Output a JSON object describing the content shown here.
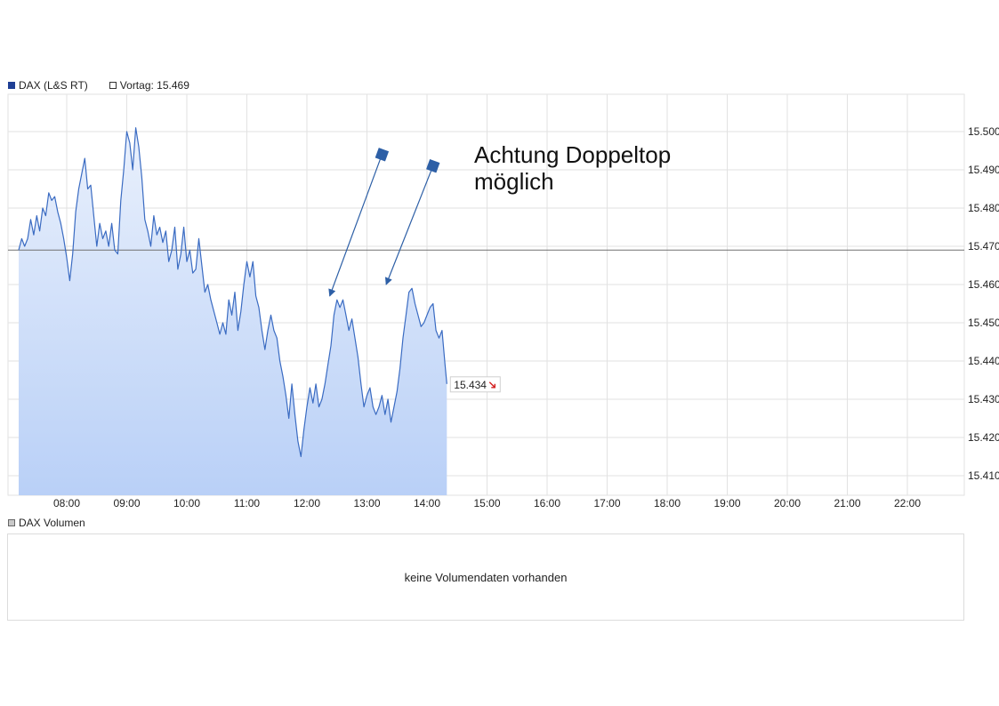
{
  "legend": {
    "series_label": "DAX (L&S RT)",
    "vortag_label": "Vortag: 15.469",
    "volume_label": "DAX Volumen"
  },
  "volume": {
    "message": "keine Volumendaten vorhanden"
  },
  "annotation": {
    "line1": "Achtung Doppeltop",
    "line2": "möglich"
  },
  "colors": {
    "line": "#3a6bc2",
    "fill_top": "#e9f0fc",
    "fill_bottom": "#b9d0f7",
    "grid": "#e2e2e2",
    "reference": "#707070",
    "arrow": "#2d5fa6",
    "last_down_arrow": "#d42020"
  },
  "chart_data": {
    "type": "area",
    "title": "",
    "xlabel": "",
    "ylabel": "",
    "x_ticks": [
      "08:00",
      "09:00",
      "10:00",
      "11:00",
      "12:00",
      "13:00",
      "14:00",
      "15:00",
      "16:00",
      "17:00",
      "18:00",
      "19:00",
      "20:00",
      "21:00",
      "22:00"
    ],
    "y_ticks": [
      "15.410",
      "15.420",
      "15.430",
      "15.440",
      "15.450",
      "15.460",
      "15.470",
      "15.480",
      "15.490",
      "15.500"
    ],
    "y_tick_values": [
      15410,
      15420,
      15430,
      15440,
      15450,
      15460,
      15470,
      15480,
      15490,
      15500
    ],
    "x_range_hours": [
      7.2,
      23.0
    ],
    "ylim": [
      15405,
      15510
    ],
    "reference_value": 15469,
    "last_value": 15434,
    "last_value_label": "15.434",
    "series": [
      {
        "name": "DAX (L&S RT)",
        "points": [
          [
            7.2,
            15469
          ],
          [
            7.25,
            15472
          ],
          [
            7.3,
            15470
          ],
          [
            7.35,
            15472
          ],
          [
            7.4,
            15477
          ],
          [
            7.45,
            15473
          ],
          [
            7.5,
            15478
          ],
          [
            7.55,
            15474
          ],
          [
            7.6,
            15480
          ],
          [
            7.65,
            15478
          ],
          [
            7.7,
            15484
          ],
          [
            7.75,
            15482
          ],
          [
            7.8,
            15483
          ],
          [
            7.85,
            15479
          ],
          [
            7.9,
            15476
          ],
          [
            7.95,
            15472
          ],
          [
            8.0,
            15467
          ],
          [
            8.05,
            15461
          ],
          [
            8.1,
            15468
          ],
          [
            8.15,
            15479
          ],
          [
            8.2,
            15485
          ],
          [
            8.25,
            15489
          ],
          [
            8.3,
            15493
          ],
          [
            8.35,
            15485
          ],
          [
            8.4,
            15486
          ],
          [
            8.45,
            15478
          ],
          [
            8.5,
            15470
          ],
          [
            8.55,
            15476
          ],
          [
            8.6,
            15472
          ],
          [
            8.65,
            15474
          ],
          [
            8.7,
            15470
          ],
          [
            8.75,
            15476
          ],
          [
            8.8,
            15469
          ],
          [
            8.85,
            15468
          ],
          [
            8.9,
            15482
          ],
          [
            8.95,
            15490
          ],
          [
            9.0,
            15500
          ],
          [
            9.05,
            15497
          ],
          [
            9.1,
            15490
          ],
          [
            9.15,
            15501
          ],
          [
            9.2,
            15496
          ],
          [
            9.25,
            15488
          ],
          [
            9.3,
            15477
          ],
          [
            9.35,
            15474
          ],
          [
            9.4,
            15470
          ],
          [
            9.45,
            15478
          ],
          [
            9.5,
            15473
          ],
          [
            9.55,
            15475
          ],
          [
            9.6,
            15471
          ],
          [
            9.65,
            15474
          ],
          [
            9.7,
            15466
          ],
          [
            9.75,
            15469
          ],
          [
            9.8,
            15475
          ],
          [
            9.85,
            15464
          ],
          [
            9.9,
            15468
          ],
          [
            9.95,
            15475
          ],
          [
            10.0,
            15466
          ],
          [
            10.05,
            15469
          ],
          [
            10.1,
            15463
          ],
          [
            10.15,
            15464
          ],
          [
            10.2,
            15472
          ],
          [
            10.25,
            15465
          ],
          [
            10.3,
            15458
          ],
          [
            10.35,
            15460
          ],
          [
            10.4,
            15456
          ],
          [
            10.45,
            15453
          ],
          [
            10.5,
            15450
          ],
          [
            10.55,
            15447
          ],
          [
            10.6,
            15450
          ],
          [
            10.65,
            15447
          ],
          [
            10.7,
            15456
          ],
          [
            10.75,
            15452
          ],
          [
            10.8,
            15458
          ],
          [
            10.85,
            15448
          ],
          [
            10.9,
            15453
          ],
          [
            10.95,
            15460
          ],
          [
            11.0,
            15466
          ],
          [
            11.05,
            15462
          ],
          [
            11.1,
            15466
          ],
          [
            11.15,
            15457
          ],
          [
            11.2,
            15454
          ],
          [
            11.25,
            15448
          ],
          [
            11.3,
            15443
          ],
          [
            11.35,
            15448
          ],
          [
            11.4,
            15452
          ],
          [
            11.45,
            15448
          ],
          [
            11.5,
            15446
          ],
          [
            11.55,
            15440
          ],
          [
            11.6,
            15436
          ],
          [
            11.65,
            15431
          ],
          [
            11.7,
            15425
          ],
          [
            11.75,
            15434
          ],
          [
            11.8,
            15426
          ],
          [
            11.85,
            15419
          ],
          [
            11.9,
            15415
          ],
          [
            11.95,
            15422
          ],
          [
            12.0,
            15428
          ],
          [
            12.05,
            15433
          ],
          [
            12.1,
            15429
          ],
          [
            12.15,
            15434
          ],
          [
            12.2,
            15428
          ],
          [
            12.25,
            15430
          ],
          [
            12.3,
            15434
          ],
          [
            12.35,
            15439
          ],
          [
            12.4,
            15444
          ],
          [
            12.45,
            15452
          ],
          [
            12.5,
            15456
          ],
          [
            12.55,
            15454
          ],
          [
            12.6,
            15456
          ],
          [
            12.65,
            15452
          ],
          [
            12.7,
            15448
          ],
          [
            12.75,
            15451
          ],
          [
            12.8,
            15446
          ],
          [
            12.85,
            15441
          ],
          [
            12.9,
            15434
          ],
          [
            12.95,
            15428
          ],
          [
            13.0,
            15431
          ],
          [
            13.05,
            15433
          ],
          [
            13.1,
            15428
          ],
          [
            13.15,
            15426
          ],
          [
            13.2,
            15428
          ],
          [
            13.25,
            15431
          ],
          [
            13.3,
            15426
          ],
          [
            13.35,
            15430
          ],
          [
            13.4,
            15424
          ],
          [
            13.45,
            15428
          ],
          [
            13.5,
            15432
          ],
          [
            13.55,
            15438
          ],
          [
            13.6,
            15446
          ],
          [
            13.65,
            15452
          ],
          [
            13.7,
            15458
          ],
          [
            13.75,
            15459
          ],
          [
            13.8,
            15455
          ],
          [
            13.85,
            15452
          ],
          [
            13.9,
            15449
          ],
          [
            13.95,
            15450
          ],
          [
            14.0,
            15452
          ],
          [
            14.05,
            15454
          ],
          [
            14.1,
            15455
          ],
          [
            14.15,
            15448
          ],
          [
            14.2,
            15446
          ],
          [
            14.25,
            15448
          ],
          [
            14.3,
            15439
          ],
          [
            14.33,
            15434
          ]
        ]
      }
    ],
    "annotation_arrows": [
      {
        "from": [
          13.25,
          15494
        ],
        "to": [
          12.38,
          15457
        ]
      },
      {
        "from": [
          14.1,
          15491
        ],
        "to": [
          13.32,
          15460
        ]
      }
    ],
    "legend_position": "top-left",
    "grid": true
  }
}
